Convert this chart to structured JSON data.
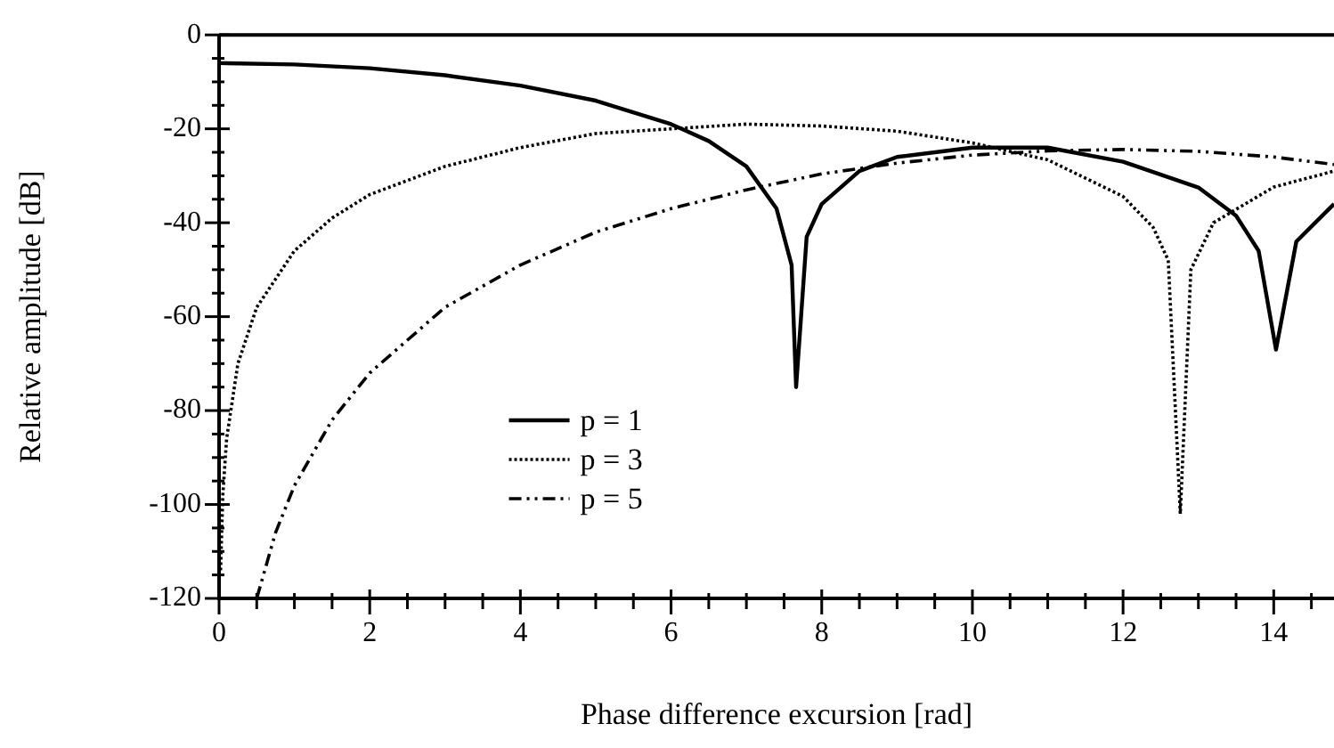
{
  "chart_data": {
    "type": "line",
    "xlabel": "Phase difference excursion [rad]",
    "ylabel": "Relative amplitude [dB]",
    "xlim": [
      0,
      14.8
    ],
    "ylim": [
      -120,
      0
    ],
    "xticks": [
      0,
      {
        "value": 0.5,
        "label": null
      },
      2,
      {
        "value": 1,
        "label": null
      },
      {
        "value": 1.5,
        "label": null
      },
      {
        "value": 2.5,
        "label": null
      },
      {
        "value": 3,
        "label": null
      },
      {
        "value": 3.5,
        "label": null
      },
      4,
      {
        "value": 4.5,
        "label": null
      },
      {
        "value": 5,
        "label": null
      },
      {
        "value": 5.5,
        "label": null
      },
      6,
      {
        "value": 6.5,
        "label": null
      },
      {
        "value": 7,
        "label": null
      },
      {
        "value": 7.5,
        "label": null
      },
      8,
      {
        "value": 8.5,
        "label": null
      },
      {
        "value": 9,
        "label": null
      },
      {
        "value": 9.5,
        "label": null
      },
      10,
      {
        "value": 10.5,
        "label": null
      },
      {
        "value": 11,
        "label": null
      },
      {
        "value": 11.5,
        "label": null
      },
      12,
      {
        "value": 12.5,
        "label": null
      },
      {
        "value": 13,
        "label": null
      },
      {
        "value": 13.5,
        "label": null
      },
      14,
      {
        "value": 14.5,
        "label": null
      }
    ],
    "yticks": [
      0,
      {
        "value": -5,
        "label": null
      },
      {
        "value": -10,
        "label": null
      },
      {
        "value": -15,
        "label": null
      },
      -20,
      {
        "value": -25,
        "label": null
      },
      {
        "value": -30,
        "label": null
      },
      {
        "value": -35,
        "label": null
      },
      -40,
      {
        "value": -45,
        "label": null
      },
      {
        "value": -50,
        "label": null
      },
      {
        "value": -55,
        "label": null
      },
      -60,
      {
        "value": -65,
        "label": null
      },
      {
        "value": -70,
        "label": null
      },
      {
        "value": -75,
        "label": null
      },
      -80,
      {
        "value": -85,
        "label": null
      },
      {
        "value": -90,
        "label": null
      },
      {
        "value": -95,
        "label": null
      },
      -100,
      {
        "value": -105,
        "label": null
      },
      {
        "value": -110,
        "label": null
      },
      {
        "value": -115,
        "label": null
      },
      -120
    ],
    "grid": false,
    "legend": "bottom left",
    "marker": "none",
    "series": [
      {
        "name": "p = 1",
        "color": "#000000",
        "line_style": "solid",
        "x": [
          0,
          1,
          2,
          3,
          4,
          5,
          6,
          6.5,
          7,
          7.4,
          7.6,
          7.66,
          7.8,
          8,
          8.5,
          9,
          10,
          10.5,
          11,
          12,
          13,
          13.5,
          13.8,
          14.03,
          14.3,
          14.8
        ],
        "values": [
          -6,
          -6.3,
          -7.1,
          -8.6,
          -10.8,
          -14,
          -19,
          -22.6,
          -28,
          -37,
          -49,
          -75,
          -43,
          -36,
          -29,
          -26,
          -24,
          -24,
          -24,
          -27,
          -32.5,
          -38.5,
          -46,
          -67,
          -44,
          -36
        ]
      },
      {
        "name": "p = 3",
        "color": "#000000",
        "line_style": "dotted",
        "x": [
          0.02,
          0.05,
          0.1,
          0.25,
          0.5,
          1,
          1.5,
          2,
          3,
          4,
          5,
          6,
          7,
          8,
          9,
          10,
          11,
          12,
          12.4,
          12.6,
          12.76,
          12.9,
          13.2,
          14,
          14.8
        ],
        "values": [
          -114,
          -98,
          -86,
          -70,
          -58,
          -46,
          -39,
          -34,
          -28,
          -24,
          -21,
          -20,
          -19,
          -19.4,
          -20.5,
          -23,
          -26.6,
          -34.4,
          -41,
          -48,
          -102,
          -50,
          -40,
          -32.4,
          -29
        ]
      },
      {
        "name": "p = 5",
        "color": "#000000",
        "line_style": "dashed",
        "x": [
          0.5,
          0.75,
          1,
          1.5,
          2,
          3,
          4,
          5,
          6,
          7,
          8,
          9,
          10,
          11,
          12,
          13,
          14,
          14.8
        ],
        "values": [
          -120,
          -106,
          -96,
          -82,
          -72,
          -58,
          -49,
          -42,
          -37,
          -33,
          -29.6,
          -27.3,
          -25.6,
          -24.7,
          -24.4,
          -24.8,
          -26,
          -27.6
        ]
      }
    ]
  }
}
